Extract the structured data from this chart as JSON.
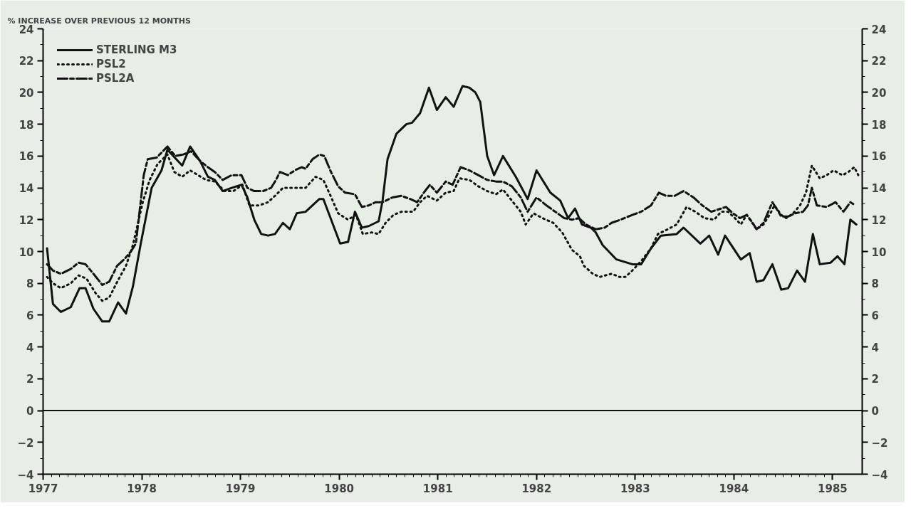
{
  "chart_data": {
    "type": "line",
    "ylabel": "% INCREASE OVER PREVIOUS 12 MONTHS",
    "xlim": [
      1977,
      1985.3
    ],
    "xticks": [
      1977,
      1978,
      1979,
      1980,
      1981,
      1982,
      1983,
      1984,
      1985
    ],
    "ylim": [
      -4,
      24
    ],
    "yticks": [
      -4,
      -2,
      0,
      2,
      4,
      6,
      8,
      10,
      12,
      14,
      16,
      18,
      20,
      22,
      24
    ],
    "y2lim": [
      -4,
      24
    ],
    "y2ticks": [
      -4,
      -2,
      0,
      2,
      4,
      6,
      8,
      10,
      12,
      14,
      16,
      18,
      20,
      22,
      24
    ],
    "ref_lines": [
      {
        "axis": "y",
        "value": 0,
        "label": null
      }
    ],
    "grid": false,
    "legend": "top left",
    "marker": "none",
    "series": [
      {
        "name": "STERLING M3",
        "color": "#111111",
        "line_style": "solid",
        "x": [
          1977.04,
          1977.1,
          1977.18,
          1977.28,
          1977.37,
          1977.43,
          1977.51,
          1977.6,
          1977.67,
          1977.76,
          1977.84,
          1977.91,
          1977.99,
          1978.1,
          1978.2,
          1978.26,
          1978.41,
          1978.49,
          1978.59,
          1978.67,
          1978.74,
          1978.82,
          1978.91,
          1979.01,
          1979.07,
          1979.14,
          1979.21,
          1979.28,
          1979.35,
          1979.43,
          1979.5,
          1979.57,
          1979.66,
          1979.8,
          1979.84,
          1980.01,
          1980.09,
          1980.16,
          1980.23,
          1980.3,
          1980.4,
          1980.44,
          1980.49,
          1980.58,
          1980.68,
          1980.74,
          1980.82,
          1980.91,
          1980.99,
          1981.08,
          1981.16,
          1981.25,
          1981.32,
          1981.38,
          1981.43,
          1981.5,
          1981.57,
          1981.66,
          1981.79,
          1981.91,
          1982.0,
          1982.14,
          1982.24,
          1982.32,
          1982.39,
          1982.46,
          1982.55,
          1982.6,
          1982.67,
          1982.81,
          1982.97,
          1983.06,
          1983.16,
          1983.26,
          1983.42,
          1983.49,
          1983.66,
          1983.75,
          1983.84,
          1983.91,
          1984.07,
          1984.16,
          1984.23,
          1984.3,
          1984.39,
          1984.48,
          1984.55,
          1984.64,
          1984.72,
          1984.8,
          1984.87,
          1984.98,
          1985.05,
          1985.12,
          1985.18,
          1985.24
        ],
        "values": [
          10.2,
          6.7,
          6.2,
          6.5,
          7.7,
          7.7,
          6.4,
          5.6,
          5.6,
          6.8,
          6.1,
          7.8,
          10.5,
          14.0,
          15.1,
          16.4,
          15.4,
          16.6,
          15.7,
          14.7,
          14.5,
          13.8,
          14.0,
          14.2,
          13.4,
          12.0,
          11.1,
          11.0,
          11.1,
          11.8,
          11.4,
          12.4,
          12.5,
          13.3,
          13.3,
          10.5,
          10.6,
          12.5,
          11.5,
          11.6,
          11.9,
          13.2,
          15.8,
          17.4,
          18.0,
          18.1,
          18.7,
          20.3,
          18.9,
          19.7,
          19.1,
          20.4,
          20.3,
          20.0,
          19.4,
          16.0,
          14.8,
          16.0,
          14.7,
          13.3,
          15.1,
          13.7,
          13.2,
          12.1,
          12.7,
          11.7,
          11.5,
          11.2,
          10.4,
          9.5,
          9.2,
          9.2,
          10.2,
          11.0,
          11.1,
          11.5,
          10.5,
          11.0,
          9.8,
          11.0,
          9.5,
          9.9,
          8.1,
          8.2,
          9.2,
          7.6,
          7.7,
          8.8,
          8.1,
          11.1,
          9.2,
          9.3,
          9.7,
          9.2,
          12.0,
          11.7
        ]
      },
      {
        "name": "PSL2",
        "color": "#111111",
        "line_style": "dotted",
        "x": [
          1977.04,
          1977.1,
          1977.18,
          1977.28,
          1977.36,
          1977.44,
          1977.53,
          1977.6,
          1977.67,
          1977.76,
          1977.84,
          1977.91,
          1978.01,
          1978.08,
          1978.16,
          1978.26,
          1978.33,
          1978.41,
          1978.49,
          1978.57,
          1978.65,
          1978.74,
          1978.84,
          1978.93,
          1979.02,
          1979.09,
          1979.19,
          1979.28,
          1979.35,
          1979.43,
          1979.55,
          1979.62,
          1979.66,
          1979.76,
          1979.84,
          1979.92,
          1979.99,
          1980.09,
          1980.17,
          1980.24,
          1980.33,
          1980.4,
          1980.47,
          1980.55,
          1980.63,
          1980.75,
          1980.82,
          1980.89,
          1980.99,
          1981.08,
          1981.16,
          1981.22,
          1981.32,
          1981.41,
          1981.5,
          1981.59,
          1981.66,
          1981.75,
          1981.84,
          1981.89,
          1981.97,
          1982.06,
          1982.17,
          1982.26,
          1982.36,
          1982.44,
          1982.48,
          1982.57,
          1982.64,
          1982.76,
          1982.84,
          1982.9,
          1982.97,
          1983.06,
          1983.16,
          1983.23,
          1983.33,
          1983.42,
          1983.52,
          1983.61,
          1983.7,
          1983.8,
          1983.87,
          1983.94,
          1984.01,
          1984.07,
          1984.13,
          1984.23,
          1984.3,
          1984.37,
          1984.41,
          1984.48,
          1984.53,
          1984.6,
          1984.67,
          1984.73,
          1984.79,
          1984.87,
          1984.94,
          1985.01,
          1985.1,
          1985.16,
          1985.22,
          1985.26
        ],
        "values": [
          8.4,
          8.0,
          7.7,
          8.0,
          8.5,
          8.3,
          7.4,
          6.9,
          7.1,
          8.2,
          9.1,
          10.4,
          13.1,
          14.5,
          15.5,
          16.1,
          15.0,
          14.7,
          15.1,
          14.8,
          14.5,
          14.4,
          13.8,
          13.8,
          14.2,
          12.9,
          12.9,
          13.1,
          13.5,
          14.0,
          14.0,
          14.0,
          14.0,
          14.7,
          14.5,
          13.4,
          12.4,
          12.0,
          12.3,
          11.1,
          11.2,
          11.1,
          11.8,
          12.3,
          12.5,
          12.5,
          13.1,
          13.5,
          13.2,
          13.7,
          13.8,
          14.6,
          14.5,
          14.1,
          13.8,
          13.6,
          13.9,
          13.2,
          12.5,
          11.7,
          12.4,
          12.1,
          11.8,
          11.2,
          10.1,
          9.7,
          9.1,
          8.6,
          8.4,
          8.6,
          8.4,
          8.4,
          8.8,
          9.4,
          10.2,
          11.1,
          11.4,
          11.7,
          12.8,
          12.5,
          12.1,
          12.0,
          12.5,
          12.5,
          12.1,
          11.7,
          12.3,
          11.4,
          11.7,
          12.4,
          12.9,
          12.3,
          12.1,
          12.4,
          12.9,
          13.7,
          15.4,
          14.6,
          14.8,
          15.1,
          14.8,
          15.0,
          15.3,
          14.8
        ]
      },
      {
        "name": "PSL2A",
        "color": "#111111",
        "line_style": "dashed",
        "x": [
          1977.04,
          1977.1,
          1977.18,
          1977.28,
          1977.36,
          1977.43,
          1977.51,
          1977.6,
          1977.67,
          1977.75,
          1977.82,
          1977.89,
          1977.94,
          1978.02,
          1978.06,
          1978.15,
          1978.26,
          1978.34,
          1978.42,
          1978.5,
          1978.59,
          1978.67,
          1978.74,
          1978.82,
          1978.91,
          1979.01,
          1979.07,
          1979.14,
          1979.23,
          1979.31,
          1979.36,
          1979.4,
          1979.48,
          1979.55,
          1979.62,
          1979.66,
          1979.73,
          1979.8,
          1979.85,
          1979.91,
          1979.99,
          1980.06,
          1980.16,
          1980.23,
          1980.3,
          1980.37,
          1980.44,
          1980.54,
          1980.63,
          1980.72,
          1980.79,
          1980.87,
          1980.92,
          1980.99,
          1981.08,
          1981.15,
          1981.23,
          1981.32,
          1981.41,
          1981.5,
          1981.59,
          1981.66,
          1981.75,
          1981.84,
          1981.91,
          1982.0,
          1982.1,
          1982.19,
          1982.28,
          1982.36,
          1982.43,
          1982.5,
          1982.6,
          1982.69,
          1982.76,
          1982.85,
          1982.97,
          1983.06,
          1983.16,
          1983.24,
          1983.31,
          1983.4,
          1983.49,
          1983.59,
          1983.68,
          1983.77,
          1983.87,
          1983.92,
          1983.99,
          1984.06,
          1984.13,
          1984.19,
          1984.23,
          1984.3,
          1984.39,
          1984.48,
          1984.55,
          1984.62,
          1984.7,
          1984.75,
          1984.79,
          1984.84,
          1984.94,
          1985.03,
          1985.11,
          1985.18,
          1985.23
        ],
        "values": [
          9.2,
          8.8,
          8.6,
          8.9,
          9.3,
          9.2,
          8.6,
          7.9,
          8.1,
          9.1,
          9.5,
          10.0,
          10.5,
          14.8,
          15.8,
          15.9,
          16.6,
          16.0,
          16.1,
          16.3,
          15.7,
          15.3,
          15.0,
          14.5,
          14.8,
          14.8,
          14.0,
          13.8,
          13.8,
          14.0,
          14.5,
          15.0,
          14.8,
          15.1,
          15.3,
          15.2,
          15.8,
          16.1,
          16.0,
          15.1,
          14.1,
          13.7,
          13.6,
          12.8,
          12.9,
          13.1,
          13.1,
          13.4,
          13.5,
          13.3,
          13.1,
          13.8,
          14.2,
          13.7,
          14.4,
          14.2,
          15.3,
          15.1,
          14.8,
          14.5,
          14.4,
          14.4,
          14.1,
          13.4,
          12.5,
          13.4,
          12.9,
          12.5,
          12.1,
          12.0,
          12.1,
          11.7,
          11.4,
          11.5,
          11.8,
          12.0,
          12.3,
          12.5,
          12.9,
          13.7,
          13.5,
          13.5,
          13.8,
          13.4,
          12.9,
          12.5,
          12.7,
          12.8,
          12.4,
          12.1,
          12.3,
          11.8,
          11.4,
          11.8,
          13.1,
          12.2,
          12.2,
          12.4,
          12.5,
          12.9,
          14.0,
          12.9,
          12.8,
          13.1,
          12.5,
          13.1,
          12.9
        ]
      }
    ]
  }
}
